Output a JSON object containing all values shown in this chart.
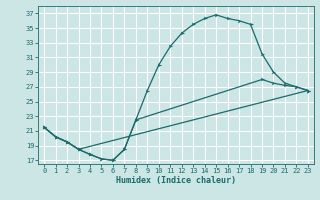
{
  "title": "",
  "xlabel": "Humidex (Indice chaleur)",
  "bg_color": "#cce5e5",
  "grid_color": "#ffffff",
  "line_color": "#1a6b6b",
  "xlim": [
    -0.5,
    23.5
  ],
  "ylim": [
    16.5,
    38.0
  ],
  "xticks": [
    0,
    1,
    2,
    3,
    4,
    5,
    6,
    7,
    8,
    9,
    10,
    11,
    12,
    13,
    14,
    15,
    16,
    17,
    18,
    19,
    20,
    21,
    22,
    23
  ],
  "yticks": [
    17,
    19,
    21,
    23,
    25,
    27,
    29,
    31,
    33,
    35,
    37
  ],
  "line1_x": [
    0,
    1,
    2,
    3,
    4,
    5,
    6,
    7,
    8,
    9,
    10,
    11,
    12,
    13,
    14,
    15,
    16,
    17,
    18,
    19,
    20,
    21,
    22,
    23
  ],
  "line1_y": [
    21.5,
    20.2,
    19.5,
    18.5,
    17.8,
    17.2,
    17.0,
    18.5,
    22.5,
    26.5,
    30.0,
    32.5,
    34.3,
    35.5,
    36.3,
    36.8,
    36.3,
    36.0,
    35.5,
    31.5,
    29.0,
    27.5,
    27.0,
    26.5
  ],
  "line2_x": [
    0,
    1,
    2,
    3,
    4,
    5,
    6,
    7,
    8,
    19,
    20,
    21,
    22,
    23
  ],
  "line2_y": [
    21.5,
    20.2,
    19.5,
    18.5,
    17.8,
    17.2,
    17.0,
    18.5,
    22.5,
    28.0,
    27.5,
    27.2,
    27.0,
    26.5
  ],
  "line3_x": [
    0,
    1,
    2,
    3,
    23
  ],
  "line3_y": [
    21.5,
    20.2,
    19.5,
    18.5,
    26.5
  ]
}
